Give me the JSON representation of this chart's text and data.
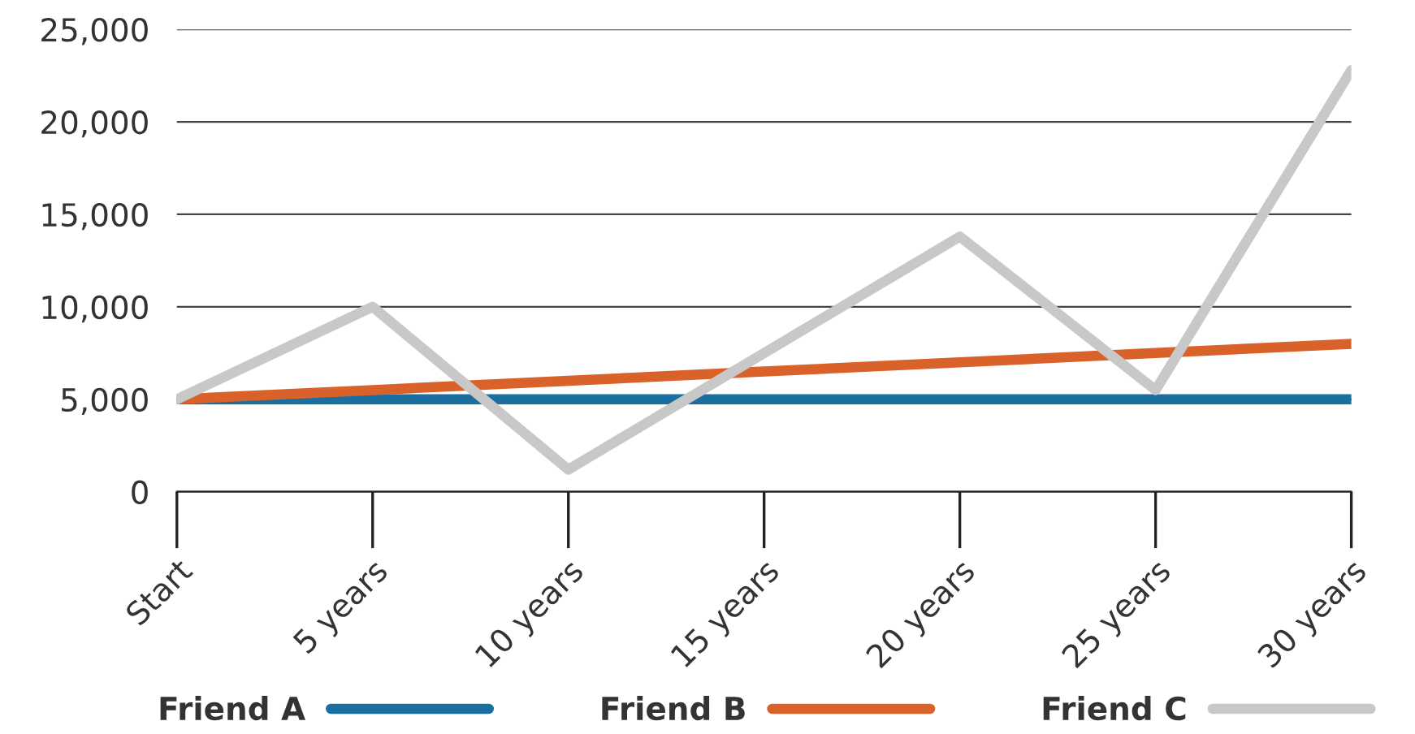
{
  "chart_data": {
    "type": "line",
    "categories": [
      "Start",
      "5 years",
      "10 years",
      "15 years",
      "20 years",
      "25 years",
      "30 years"
    ],
    "series": [
      {
        "name": "Friend A",
        "color": "#1a6fa0",
        "values": [
          5000,
          5000,
          5000,
          5000,
          5000,
          5000,
          5000
        ]
      },
      {
        "name": "Friend B",
        "color": "#d9622b",
        "values": [
          5000,
          5500,
          6000,
          6500,
          7000,
          7500,
          8000
        ]
      },
      {
        "name": "Friend C",
        "color": "#c8c8c8",
        "values": [
          5000,
          10000,
          1200,
          7500,
          13800,
          5500,
          22800
        ]
      }
    ],
    "ylim": [
      0,
      25000
    ],
    "yticks": [
      0,
      {
        "value": 5000,
        "label": "5,000"
      },
      {
        "value": 10000,
        "label": "10,000"
      },
      {
        "value": 15000,
        "label": "15,000"
      },
      {
        "value": 20000,
        "label": "20,000"
      },
      {
        "value": 25000,
        "label": "25,000"
      }
    ],
    "grid": "y",
    "legend": "bottom",
    "marker": "none",
    "line_style": "solid"
  }
}
